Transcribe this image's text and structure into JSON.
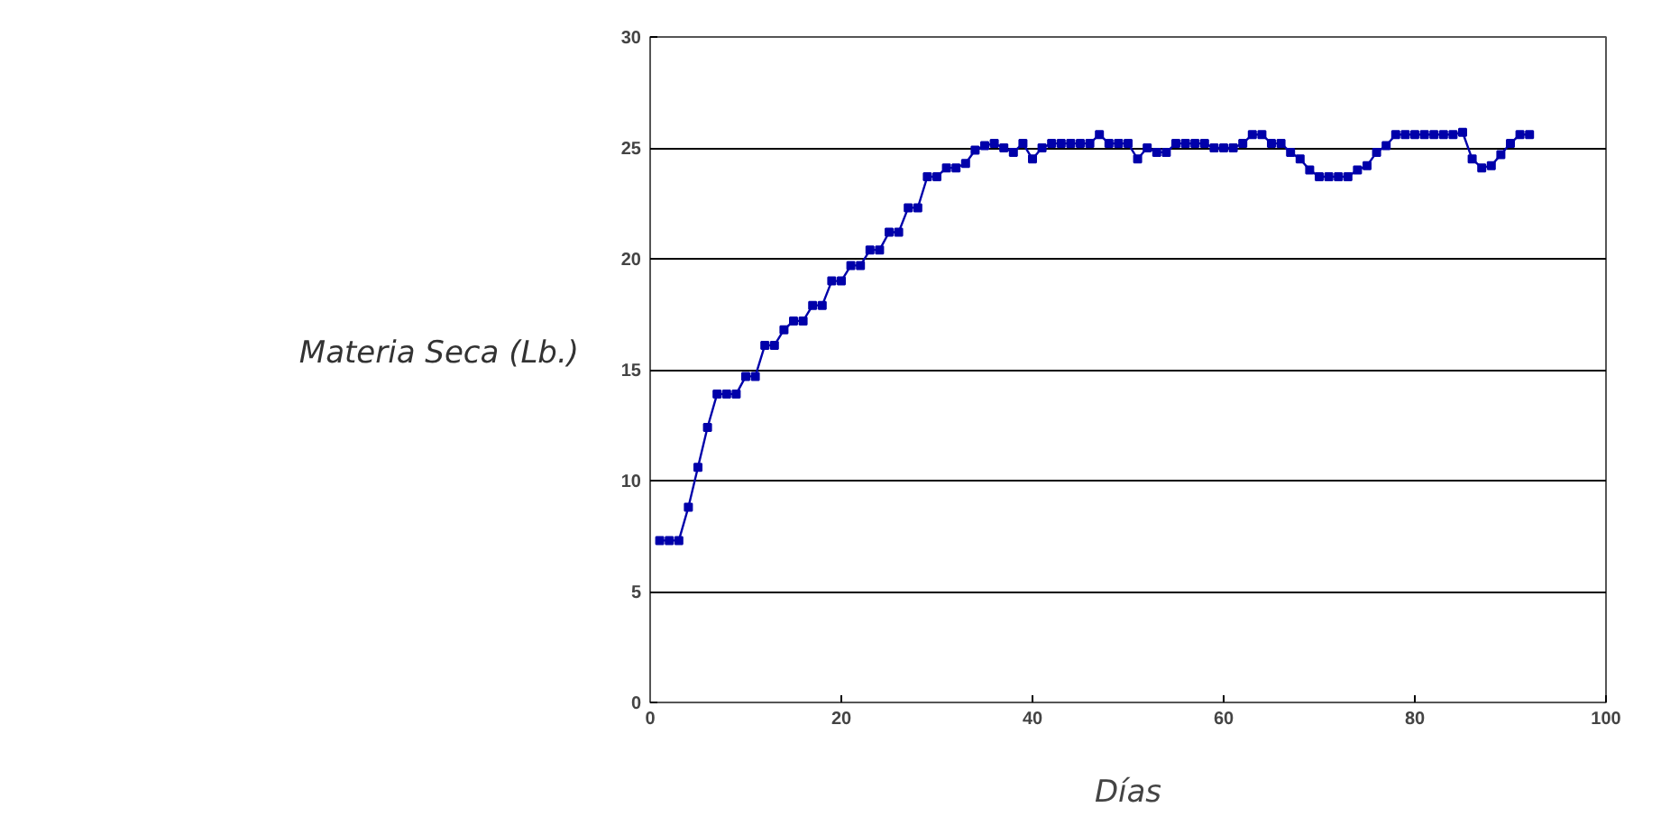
{
  "chart_data": {
    "type": "line",
    "xlabel": "Días",
    "ylabel": "Materia Seca (Lb.)",
    "x": [
      1,
      2,
      3,
      4,
      5,
      6,
      7,
      8,
      9,
      10,
      11,
      12,
      13,
      14,
      15,
      16,
      17,
      18,
      19,
      20,
      21,
      22,
      23,
      24,
      25,
      26,
      27,
      28,
      29,
      30,
      31,
      32,
      33,
      34,
      35,
      36,
      37,
      38,
      39,
      40,
      41,
      42,
      43,
      44,
      45,
      46,
      47,
      48,
      49,
      50,
      51,
      52,
      53,
      54,
      55,
      56,
      57,
      58,
      59,
      60,
      61,
      62,
      63,
      64,
      65,
      66,
      67,
      68,
      69,
      70,
      71,
      72,
      73,
      74,
      75,
      76,
      77,
      78,
      79,
      80,
      81,
      82,
      83,
      84,
      85,
      86,
      87,
      88,
      89,
      90,
      91,
      92
    ],
    "series": [
      {
        "color": "#0000aa",
        "values": [
          7.3,
          7.3,
          7.3,
          8.8,
          10.6,
          12.4,
          13.9,
          13.9,
          13.9,
          14.7,
          14.7,
          16.1,
          16.1,
          16.8,
          17.2,
          17.2,
          17.9,
          17.9,
          19.0,
          19.0,
          19.7,
          19.7,
          20.4,
          20.4,
          21.2,
          21.2,
          22.3,
          22.3,
          23.7,
          23.7,
          24.1,
          24.1,
          24.3,
          24.9,
          25.1,
          25.2,
          25.0,
          24.8,
          25.2,
          24.5,
          25.0,
          25.2,
          25.2,
          25.2,
          25.2,
          25.2,
          25.6,
          25.2,
          25.2,
          25.2,
          24.5,
          25.0,
          24.8,
          24.8,
          25.2,
          25.2,
          25.2,
          25.2,
          25.0,
          25.0,
          25.0,
          25.2,
          25.6,
          25.6,
          25.2,
          25.2,
          24.8,
          24.5,
          24.0,
          23.7,
          23.7,
          23.7,
          23.7,
          24.0,
          24.2,
          24.8,
          25.1,
          25.6,
          25.6,
          25.6,
          25.6,
          25.6,
          25.6,
          25.6,
          25.7,
          24.5,
          24.1,
          24.2,
          24.7,
          25.2,
          25.6,
          25.6
        ]
      }
    ],
    "xlim": [
      0,
      100
    ],
    "ylim": [
      0,
      30
    ],
    "xticks": [
      0,
      20,
      40,
      60,
      80,
      100
    ],
    "yticks": [
      0,
      5,
      10,
      15,
      20,
      25,
      30
    ],
    "grid": "y",
    "marker": "square",
    "line_style": "solid"
  }
}
